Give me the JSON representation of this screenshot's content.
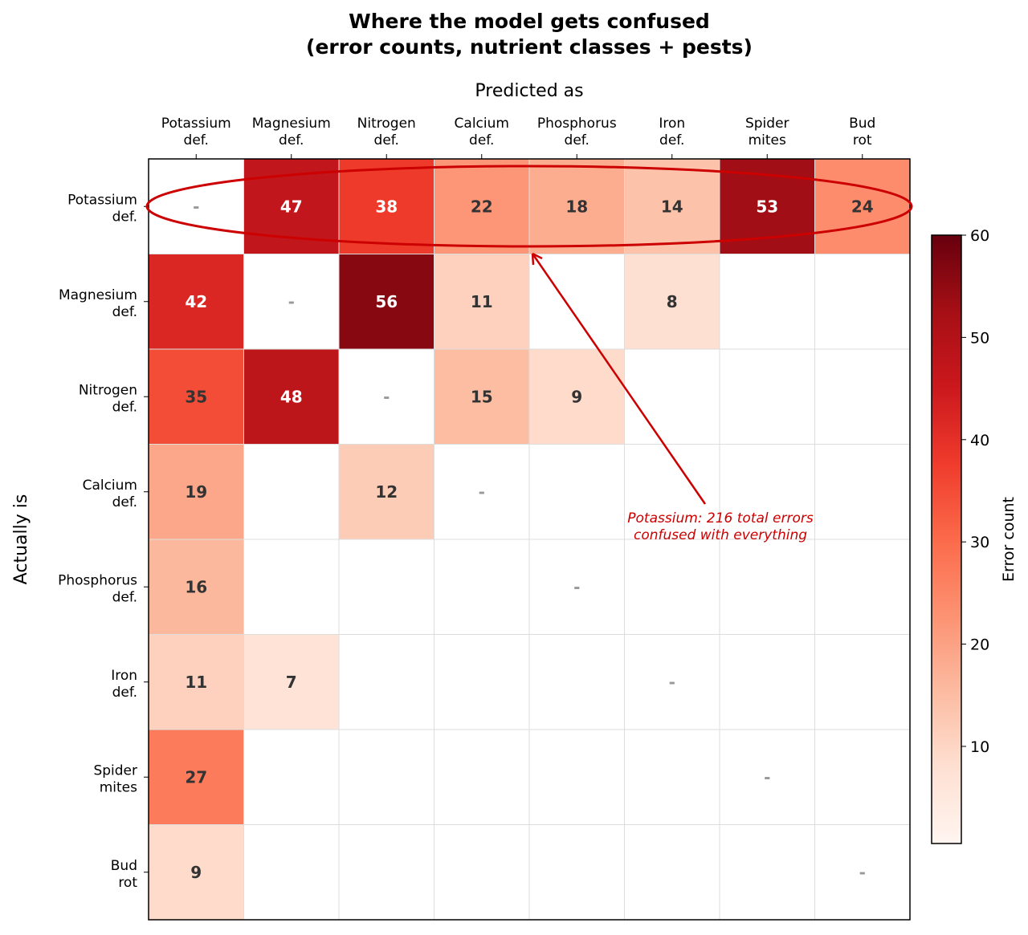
{
  "chart_data": {
    "type": "heatmap",
    "title": "Where the model gets confused\n(error counts, nutrient classes + pests)",
    "xlabel": "Predicted as",
    "ylabel": "Actually is",
    "x_categories": [
      "Potassium\ndef.",
      "Magnesium\ndef.",
      "Nitrogen\ndef.",
      "Calcium\ndef.",
      "Phosphorus\ndef.",
      "Iron\ndef.",
      "Spider\nmites",
      "Bud\nrot"
    ],
    "y_categories": [
      "Potassium\ndef.",
      "Magnesium\ndef.",
      "Nitrogen\ndef.",
      "Calcium\ndef.",
      "Phosphorus\ndef.",
      "Iron\ndef.",
      "Spider\nmites",
      "Bud\nrot"
    ],
    "values": [
      [
        null,
        47,
        38,
        22,
        18,
        14,
        53,
        24
      ],
      [
        42,
        null,
        56,
        11,
        0,
        8,
        0,
        0
      ],
      [
        35,
        48,
        null,
        15,
        9,
        0,
        0,
        0
      ],
      [
        19,
        0,
        12,
        null,
        0,
        0,
        0,
        0
      ],
      [
        16,
        0,
        0,
        0,
        null,
        0,
        0,
        0
      ],
      [
        11,
        7,
        0,
        0,
        0,
        null,
        0,
        0
      ],
      [
        27,
        0,
        0,
        0,
        0,
        0,
        null,
        0
      ],
      [
        9,
        0,
        0,
        0,
        0,
        0,
        0,
        null
      ]
    ],
    "diagonal_label": "-",
    "colormap": "Reds",
    "clim": [
      0.5,
      60
    ],
    "colorbar": {
      "label": "Error count",
      "ticks": [
        10,
        20,
        30,
        40,
        50,
        60
      ]
    },
    "annotation": {
      "text": "Potassium: 216 total errors\nconfused with everything",
      "color": "#cc0000",
      "highlight_row": "Potassium\ndef."
    },
    "grid": true
  }
}
